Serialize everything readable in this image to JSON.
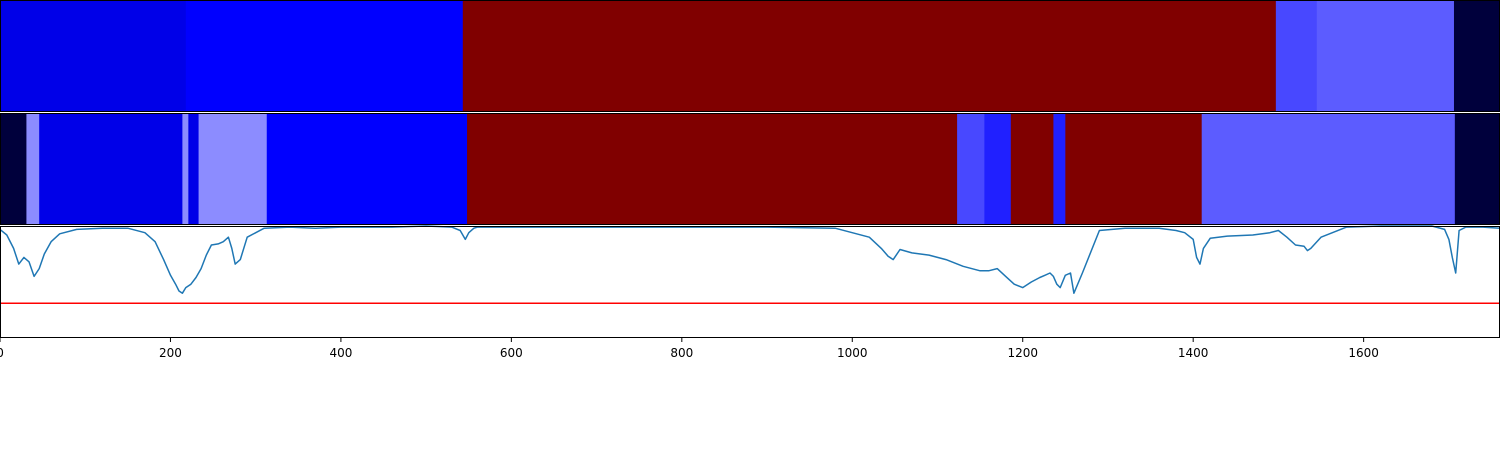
{
  "chart_data": [
    {
      "type": "heatmap",
      "row": "top",
      "segments": [
        {
          "start": 0,
          "end": 218,
          "color": "#0000e8"
        },
        {
          "start": 218,
          "end": 543,
          "color": "#0000ff"
        },
        {
          "start": 543,
          "end": 1497,
          "color": "#800000"
        },
        {
          "start": 1497,
          "end": 1545,
          "color": "#4848ff"
        },
        {
          "start": 1545,
          "end": 1706,
          "color": "#5c5cff"
        },
        {
          "start": 1706,
          "end": 1760,
          "color": "#00003c"
        }
      ]
    },
    {
      "type": "heatmap",
      "row": "middle",
      "segments": [
        {
          "start": 0,
          "end": 31,
          "color": "#00003c"
        },
        {
          "start": 31,
          "end": 46,
          "color": "#8c8cff"
        },
        {
          "start": 46,
          "end": 214,
          "color": "#0000e8"
        },
        {
          "start": 214,
          "end": 221,
          "color": "#8c8cff"
        },
        {
          "start": 221,
          "end": 233,
          "color": "#0000e8"
        },
        {
          "start": 233,
          "end": 313,
          "color": "#8c8cff"
        },
        {
          "start": 313,
          "end": 548,
          "color": "#0000ff"
        },
        {
          "start": 548,
          "end": 1123,
          "color": "#800000"
        },
        {
          "start": 1123,
          "end": 1155,
          "color": "#4848ff"
        },
        {
          "start": 1155,
          "end": 1186,
          "color": "#2020ff"
        },
        {
          "start": 1186,
          "end": 1236,
          "color": "#800000"
        },
        {
          "start": 1236,
          "end": 1250,
          "color": "#2020ff"
        },
        {
          "start": 1250,
          "end": 1410,
          "color": "#800000"
        },
        {
          "start": 1410,
          "end": 1707,
          "color": "#5c5cff"
        },
        {
          "start": 1707,
          "end": 1760,
          "color": "#00003c"
        }
      ]
    },
    {
      "type": "line",
      "row": "bottom",
      "ylim": [
        0,
        1
      ],
      "x": [
        0,
        8,
        16,
        22,
        28,
        34,
        40,
        46,
        52,
        60,
        70,
        90,
        120,
        150,
        170,
        182,
        192,
        200,
        206,
        210,
        214,
        218,
        224,
        230,
        236,
        242,
        248,
        256,
        262,
        268,
        272,
        276,
        282,
        290,
        310,
        340,
        370,
        400,
        430,
        460,
        500,
        530,
        540,
        546,
        550,
        556,
        560,
        580,
        620,
        700,
        800,
        900,
        980,
        1020,
        1034,
        1042,
        1048,
        1056,
        1070,
        1090,
        1110,
        1130,
        1150,
        1160,
        1170,
        1180,
        1190,
        1200,
        1210,
        1220,
        1226,
        1232,
        1236,
        1240,
        1244,
        1250,
        1256,
        1260,
        1270,
        1290,
        1320,
        1360,
        1380,
        1390,
        1400,
        1404,
        1408,
        1412,
        1420,
        1440,
        1470,
        1490,
        1500,
        1510,
        1520,
        1530,
        1534,
        1538,
        1550,
        1580,
        1620,
        1680,
        1695,
        1700,
        1704,
        1708,
        1712,
        1720,
        1740,
        1760
      ],
      "values": [
        0.97,
        0.92,
        0.8,
        0.66,
        0.72,
        0.68,
        0.55,
        0.62,
        0.75,
        0.86,
        0.93,
        0.97,
        0.98,
        0.98,
        0.94,
        0.86,
        0.7,
        0.56,
        0.48,
        0.42,
        0.4,
        0.45,
        0.48,
        0.54,
        0.62,
        0.74,
        0.83,
        0.84,
        0.86,
        0.9,
        0.8,
        0.66,
        0.7,
        0.9,
        0.98,
        0.99,
        0.98,
        0.99,
        0.99,
        0.99,
        1.0,
        0.99,
        0.96,
        0.88,
        0.94,
        0.98,
        0.99,
        0.99,
        0.99,
        0.99,
        0.99,
        0.99,
        0.98,
        0.9,
        0.8,
        0.73,
        0.7,
        0.79,
        0.76,
        0.74,
        0.7,
        0.64,
        0.6,
        0.6,
        0.62,
        0.55,
        0.48,
        0.45,
        0.5,
        0.54,
        0.56,
        0.58,
        0.55,
        0.48,
        0.45,
        0.56,
        0.58,
        0.4,
        0.58,
        0.96,
        0.98,
        0.98,
        0.96,
        0.94,
        0.88,
        0.72,
        0.66,
        0.8,
        0.89,
        0.91,
        0.92,
        0.94,
        0.96,
        0.9,
        0.83,
        0.82,
        0.78,
        0.8,
        0.9,
        0.99,
        1.0,
        1.0,
        0.97,
        0.88,
        0.72,
        0.58,
        0.96,
        0.99,
        0.99,
        0.98
      ],
      "color": "#1f77b4",
      "threshold": 0.31,
      "threshold_color": "#ff0000",
      "xlim": [
        0,
        1760
      ],
      "x_ticks": [
        0,
        200,
        400,
        600,
        800,
        1000,
        1200,
        1400,
        1600
      ],
      "tick_labels": [
        "0",
        "200",
        "400",
        "600",
        "800",
        "1000",
        "1200",
        "1400",
        "1600"
      ]
    }
  ]
}
